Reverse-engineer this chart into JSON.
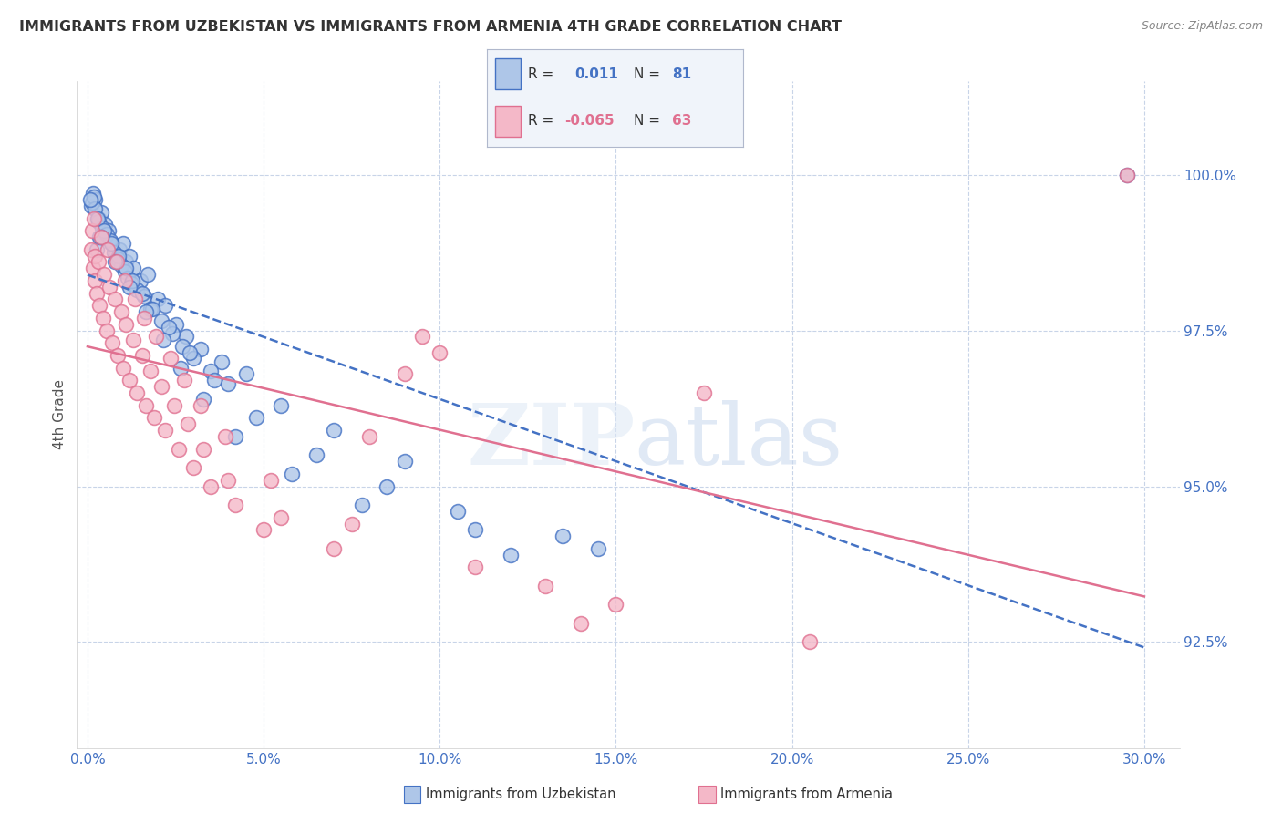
{
  "title": "IMMIGRANTS FROM UZBEKISTAN VS IMMIGRANTS FROM ARMENIA 4TH GRADE CORRELATION CHART",
  "source": "Source: ZipAtlas.com",
  "xlabel_vals": [
    0.0,
    5.0,
    10.0,
    15.0,
    20.0,
    25.0,
    30.0
  ],
  "ylabel_vals": [
    92.5,
    95.0,
    97.5,
    100.0
  ],
  "ylim": [
    90.8,
    101.5
  ],
  "xlim": [
    -0.3,
    31.0
  ],
  "ylabel": "4th Grade",
  "r_uzbek": "0.011",
  "n_uzbek": "81",
  "r_armenia": "-0.065",
  "n_armenia": "63",
  "color_uzbek_fill": "#aec6e8",
  "color_uzbek_edge": "#4472c4",
  "color_armenia_fill": "#f4b8c8",
  "color_armenia_edge": "#e07090",
  "color_uzbek_trendline": "#4472c4",
  "color_armenia_trendline": "#e07090",
  "color_axis_ticks": "#4472c4",
  "color_title": "#333333",
  "color_grid": "#c8d4e8",
  "uzbek_x": [
    0.1,
    0.15,
    0.2,
    0.25,
    0.3,
    0.35,
    0.4,
    0.5,
    0.6,
    0.7,
    0.8,
    0.9,
    1.0,
    1.1,
    1.2,
    1.3,
    1.5,
    1.7,
    2.0,
    2.2,
    2.5,
    2.8,
    3.2,
    3.8,
    4.5,
    0.12,
    0.18,
    0.22,
    0.32,
    0.42,
    0.55,
    0.65,
    0.75,
    0.85,
    0.95,
    1.05,
    1.15,
    1.25,
    1.4,
    1.6,
    1.8,
    2.1,
    2.4,
    2.7,
    3.0,
    3.5,
    4.0,
    5.5,
    7.0,
    9.0,
    0.08,
    0.28,
    0.48,
    0.68,
    0.88,
    1.08,
    1.28,
    1.55,
    1.85,
    2.3,
    2.9,
    3.6,
    4.8,
    6.5,
    8.5,
    10.5,
    13.5,
    14.5,
    0.38,
    0.78,
    1.18,
    1.65,
    2.15,
    2.65,
    3.3,
    4.2,
    5.8,
    7.8,
    11.0,
    12.0,
    29.5
  ],
  "uzbek_y": [
    99.5,
    99.7,
    99.6,
    98.8,
    99.3,
    99.0,
    99.4,
    99.2,
    99.1,
    98.9,
    98.7,
    98.8,
    98.9,
    98.6,
    98.7,
    98.5,
    98.3,
    98.4,
    98.0,
    97.9,
    97.6,
    97.4,
    97.2,
    97.0,
    96.8,
    99.55,
    99.65,
    99.45,
    99.25,
    99.15,
    99.05,
    98.95,
    98.75,
    98.65,
    98.55,
    98.45,
    98.35,
    98.25,
    98.15,
    98.05,
    97.85,
    97.65,
    97.45,
    97.25,
    97.05,
    96.85,
    96.65,
    96.3,
    95.9,
    95.4,
    99.6,
    99.3,
    99.1,
    98.9,
    98.7,
    98.5,
    98.3,
    98.1,
    97.85,
    97.55,
    97.15,
    96.7,
    96.1,
    95.5,
    95.0,
    94.6,
    94.2,
    94.0,
    99.0,
    98.6,
    98.2,
    97.8,
    97.35,
    96.9,
    96.4,
    95.8,
    95.2,
    94.7,
    94.3,
    93.9,
    100.0
  ],
  "armenia_x": [
    0.1,
    0.15,
    0.2,
    0.25,
    0.35,
    0.45,
    0.55,
    0.7,
    0.85,
    1.0,
    1.2,
    1.4,
    1.65,
    1.9,
    2.2,
    2.6,
    3.0,
    3.5,
    4.2,
    5.0,
    0.12,
    0.22,
    0.32,
    0.48,
    0.62,
    0.78,
    0.95,
    1.1,
    1.3,
    1.55,
    1.8,
    2.1,
    2.45,
    2.85,
    3.3,
    4.0,
    5.5,
    7.0,
    9.5,
    0.18,
    0.38,
    0.58,
    0.82,
    1.05,
    1.35,
    1.6,
    1.95,
    2.35,
    2.75,
    3.2,
    3.9,
    5.2,
    7.5,
    11.0,
    15.0,
    20.5,
    9.0,
    13.0,
    17.5,
    8.0,
    10.0,
    29.5,
    14.0
  ],
  "armenia_y": [
    98.8,
    98.5,
    98.3,
    98.1,
    97.9,
    97.7,
    97.5,
    97.3,
    97.1,
    96.9,
    96.7,
    96.5,
    96.3,
    96.1,
    95.9,
    95.6,
    95.3,
    95.0,
    94.7,
    94.3,
    99.1,
    98.7,
    98.6,
    98.4,
    98.2,
    98.0,
    97.8,
    97.6,
    97.35,
    97.1,
    96.85,
    96.6,
    96.3,
    96.0,
    95.6,
    95.1,
    94.5,
    94.0,
    97.4,
    99.3,
    99.0,
    98.8,
    98.6,
    98.3,
    98.0,
    97.7,
    97.4,
    97.05,
    96.7,
    96.3,
    95.8,
    95.1,
    94.4,
    93.7,
    93.1,
    92.5,
    96.8,
    93.4,
    96.5,
    95.8,
    97.15,
    100.0,
    92.8
  ]
}
